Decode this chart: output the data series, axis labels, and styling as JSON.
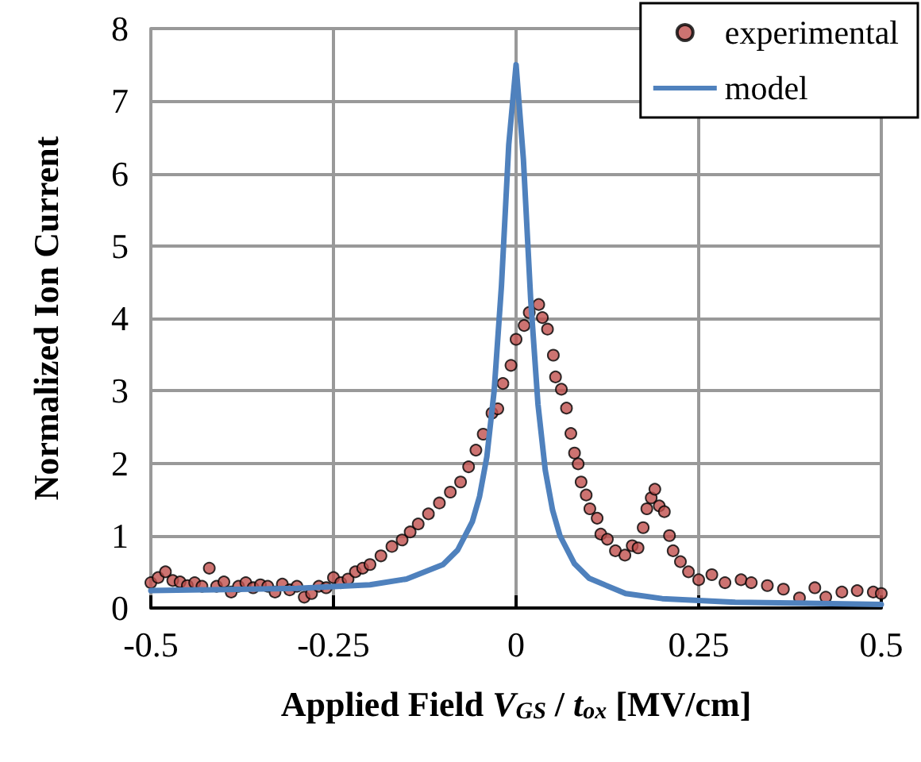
{
  "chart_data": {
    "type": "scatter",
    "xlabel": "Applied Field V$_{GS}$ / t$_{ox}$ [MV/cm]",
    "ylabel": "Normalized Ion Current",
    "xlim": [
      -0.5,
      0.5
    ],
    "xticks": [
      -0.5,
      -0.25,
      0,
      0.25,
      0.5
    ],
    "ylim": [
      0,
      8
    ],
    "yticks": [
      0,
      1,
      2,
      3,
      4,
      5,
      6,
      7,
      8
    ],
    "grid": true,
    "legend": "top right",
    "marker": "circle",
    "series": [
      {
        "name": "experimental",
        "color": "#c0504d",
        "x": [
          -0.5,
          -0.49,
          -0.48,
          -0.47,
          -0.46,
          -0.45,
          -0.44,
          -0.43,
          -0.42,
          -0.41,
          -0.4,
          -0.39,
          -0.38,
          -0.37,
          -0.36,
          -0.35,
          -0.34,
          -0.33,
          -0.32,
          -0.31,
          -0.3,
          -0.29,
          -0.28,
          -0.27,
          -0.26,
          -0.25,
          -0.24,
          -0.23,
          -0.22,
          -0.21,
          -0.2,
          -0.185,
          -0.17,
          -0.156,
          -0.145,
          -0.134,
          -0.12,
          -0.105,
          -0.09,
          -0.076,
          -0.065,
          -0.055,
          -0.045,
          -0.033,
          -0.025,
          -0.018,
          -0.007,
          0.0,
          0.011,
          0.018,
          0.031,
          0.036,
          0.043,
          0.051,
          0.054,
          0.062,
          0.069,
          0.075,
          0.08,
          0.085,
          0.089,
          0.096,
          0.101,
          0.111,
          0.116,
          0.125,
          0.136,
          0.149,
          0.159,
          0.167,
          0.174,
          0.179,
          0.185,
          0.19,
          0.196,
          0.203,
          0.21,
          0.215,
          0.225,
          0.236,
          0.25,
          0.268,
          0.286,
          0.308,
          0.322,
          0.344,
          0.366,
          0.388,
          0.409,
          0.424,
          0.446,
          0.467,
          0.489,
          0.5
        ],
        "values": [
          0.35,
          0.42,
          0.5,
          0.38,
          0.36,
          0.31,
          0.35,
          0.3,
          0.55,
          0.3,
          0.36,
          0.22,
          0.3,
          0.35,
          0.28,
          0.32,
          0.3,
          0.22,
          0.33,
          0.25,
          0.3,
          0.15,
          0.2,
          0.3,
          0.28,
          0.42,
          0.35,
          0.4,
          0.5,
          0.55,
          0.6,
          0.72,
          0.85,
          0.94,
          1.05,
          1.16,
          1.3,
          1.45,
          1.6,
          1.74,
          1.95,
          2.18,
          2.4,
          2.69,
          2.75,
          3.1,
          3.35,
          3.71,
          3.9,
          4.08,
          4.19,
          4.01,
          3.85,
          3.49,
          3.19,
          3.02,
          2.76,
          2.41,
          2.14,
          1.99,
          1.74,
          1.56,
          1.37,
          1.24,
          1.02,
          0.95,
          0.79,
          0.73,
          0.86,
          0.83,
          1.11,
          1.37,
          1.52,
          1.64,
          1.41,
          1.33,
          1.0,
          0.79,
          0.64,
          0.5,
          0.39,
          0.46,
          0.35,
          0.39,
          0.35,
          0.31,
          0.26,
          0.14,
          0.28,
          0.15,
          0.22,
          0.24,
          0.22,
          0.2
        ]
      },
      {
        "name": "model",
        "type": "line",
        "marker": "none",
        "color": "#4f81bd",
        "x": [
          -0.5,
          -0.3,
          -0.2,
          -0.15,
          -0.1,
          -0.08,
          -0.06,
          -0.05,
          -0.04,
          -0.03,
          -0.02,
          -0.01,
          0,
          0.01,
          0.02,
          0.03,
          0.04,
          0.05,
          0.06,
          0.08,
          0.1,
          0.15,
          0.2,
          0.3,
          0.5
        ],
        "values": [
          0.24,
          0.27,
          0.32,
          0.4,
          0.6,
          0.8,
          1.19,
          1.54,
          2.09,
          3.0,
          4.45,
          6.4,
          7.5,
          6.2,
          4.26,
          2.81,
          1.9,
          1.35,
          1.0,
          0.61,
          0.41,
          0.2,
          0.13,
          0.08,
          0.05
        ]
      }
    ]
  }
}
